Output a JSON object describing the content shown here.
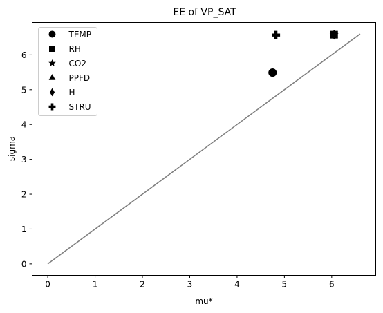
{
  "chart_data": {
    "type": "scatter",
    "title": "EE of VP_SAT",
    "xlabel": "mu*",
    "ylabel": "sigma",
    "xlim": [
      -0.33,
      6.93
    ],
    "ylim": [
      -0.33,
      6.93
    ],
    "xticks": [
      0,
      1,
      2,
      3,
      4,
      5,
      6
    ],
    "yticks": [
      0,
      1,
      2,
      3,
      4,
      5,
      6
    ],
    "grid": false,
    "legend_position": "top-left",
    "reference_line": {
      "x": [
        0,
        6.6
      ],
      "y": [
        0,
        6.6
      ],
      "color": "#808080"
    },
    "series": [
      {
        "name": "TEMP",
        "marker": "circle",
        "x": 4.75,
        "y": 5.49
      },
      {
        "name": "RH",
        "marker": "square",
        "x": 6.05,
        "y": 6.58
      },
      {
        "name": "CO2",
        "marker": "star",
        "x": 6.05,
        "y": 6.58
      },
      {
        "name": "PPFD",
        "marker": "triangle",
        "x": 6.05,
        "y": 6.58
      },
      {
        "name": "H",
        "marker": "diamond",
        "x": 6.05,
        "y": 6.58
      },
      {
        "name": "STRU",
        "marker": "plus",
        "x": 4.82,
        "y": 6.57
      }
    ]
  }
}
